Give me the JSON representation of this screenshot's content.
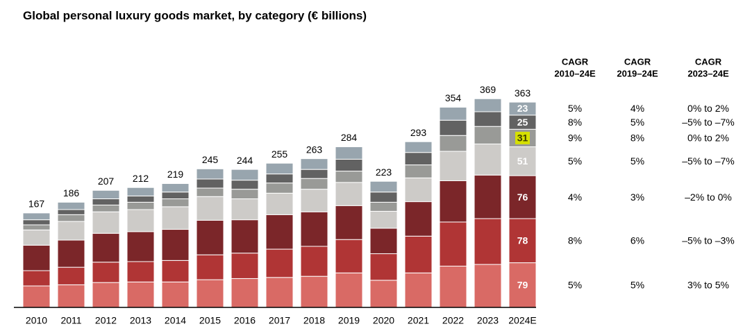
{
  "chart_data": {
    "type": "stacked_bar",
    "title": "Global personal luxury goods market, by category (€ billions)",
    "categories": [
      "2010",
      "2011",
      "2012",
      "2013",
      "2014",
      "2015",
      "2016",
      "2017",
      "2018",
      "2019",
      "2020",
      "2021",
      "2022",
      "2023",
      "2024E"
    ],
    "totals": [
      167,
      186,
      207,
      212,
      219,
      245,
      244,
      255,
      263,
      284,
      223,
      293,
      354,
      369,
      363
    ],
    "series": [
      {
        "color": "#d96a65",
        "values": [
          38,
          40,
          44,
          45,
          45,
          49,
          51,
          53,
          55,
          61,
          48,
          61,
          73,
          76,
          79
        ]
      },
      {
        "color": "#b03535",
        "values": [
          27,
          31,
          36,
          36,
          38,
          44,
          45,
          50,
          53,
          59,
          47,
          65,
          78,
          81,
          78
        ]
      },
      {
        "color": "#7b2629",
        "values": [
          45,
          48,
          51,
          53,
          55,
          61,
          59,
          61,
          61,
          60,
          45,
          61,
          73,
          77,
          76
        ]
      },
      {
        "color": "#cdcbc8",
        "values": [
          27,
          33,
          38,
          39,
          40,
          42,
          37,
          38,
          40,
          41,
          30,
          42,
          52,
          55,
          51
        ]
      },
      {
        "color": "#999a97",
        "values": [
          9,
          12,
          12,
          13,
          14,
          15,
          17,
          18,
          19,
          20,
          16,
          23,
          28,
          31,
          31
        ]
      },
      {
        "color": "#626262",
        "values": [
          9,
          9,
          11,
          11,
          12,
          16,
          16,
          16,
          16,
          21,
          18,
          22,
          27,
          26,
          25
        ]
      },
      {
        "color": "#98a5ae",
        "values": [
          12,
          13,
          15,
          15,
          15,
          18,
          19,
          19,
          19,
          22,
          19,
          19,
          23,
          23,
          23
        ]
      }
    ],
    "highlight": {
      "series": 4,
      "index": 14,
      "color": "#d6e000"
    }
  },
  "table": {
    "headers": [
      [
        "CAGR",
        "2010–24E"
      ],
      [
        "CAGR",
        "2019–24E"
      ],
      [
        "CAGR",
        "2023–24E"
      ]
    ],
    "rows": [
      [
        "5%",
        "4%",
        "0% to 2%"
      ],
      [
        "8%",
        "5%",
        "–5% to –7%"
      ],
      [
        "9%",
        "8%",
        "0% to 2%"
      ],
      [
        "5%",
        "5%",
        "–5% to –7%"
      ],
      [
        "4%",
        "3%",
        "–2% to 0%"
      ],
      [
        "8%",
        "6%",
        "–5% to –3%"
      ],
      [
        "5%",
        "5%",
        "3% to 5%"
      ]
    ]
  }
}
